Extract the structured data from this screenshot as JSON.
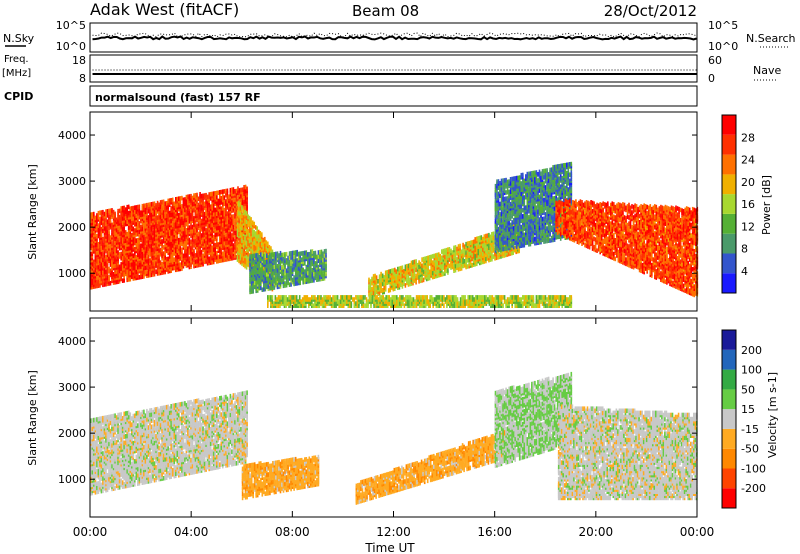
{
  "header": {
    "station": "Adak West (fitACF)",
    "beam": "Beam 08",
    "date": "28/Oct/2012"
  },
  "noise_panel": {
    "left_label": "N.Sky",
    "left_ticks": [
      "10^5",
      "10^0"
    ],
    "right_label": "N.Search",
    "right_ticks": [
      "10^5",
      "10^0"
    ]
  },
  "freq_panel": {
    "left_label_line1": "Freq.",
    "left_label_line2": "[MHz]",
    "left_ticks": [
      "18",
      "8"
    ],
    "right_label": "Nave",
    "right_ticks": [
      "60",
      "0"
    ]
  },
  "cpid_panel": {
    "label": "CPID",
    "text": "normalsound (fast) 157 RF"
  },
  "time_axis": {
    "label": "Time UT",
    "ticks": [
      "00:00",
      "04:00",
      "08:00",
      "12:00",
      "16:00",
      "20:00",
      "00:00"
    ]
  },
  "colors": {
    "power_scale": [
      "#1a1aff",
      "#3355cc",
      "#4a9a6a",
      "#55b035",
      "#a8d830",
      "#f0b000",
      "#ff7000",
      "#ff3000",
      "#ff0000"
    ],
    "velocity_scale": [
      "#ff0000",
      "#ff4400",
      "#ff8800",
      "#ffaa22",
      "#c8c8c8",
      "#66cc44",
      "#33aa44",
      "#2266bb",
      "#1a1a99"
    ]
  },
  "chart_data": [
    {
      "type": "heatmap",
      "name": "power",
      "xlabel": "Time UT",
      "ylabel": "Slant Range [km]",
      "xlim": [
        0,
        24
      ],
      "ylim": [
        180,
        4500
      ],
      "y_ticks": [
        "1000",
        "2000",
        "3000",
        "4000"
      ],
      "colorbar_label": "Power [dB]",
      "colorbar_ticks": [
        "4",
        "8",
        "12",
        "16",
        "20",
        "24",
        "28"
      ],
      "colorbar_range": [
        0,
        32
      ],
      "regions": [
        {
          "t0": 0.0,
          "t1": 6.2,
          "r_lo0": 700,
          "r_lo1": 1400,
          "r_hi0": 2300,
          "r_hi1": 2900,
          "value": 27
        },
        {
          "t0": 5.8,
          "t1": 7.2,
          "r_lo0": 1300,
          "r_lo1": 650,
          "r_hi0": 2600,
          "r_hi1": 1500,
          "value": 20
        },
        {
          "t0": 6.3,
          "t1": 9.3,
          "r_lo0": 600,
          "r_lo1": 900,
          "r_hi0": 1400,
          "r_hi1": 1500,
          "value": 10
        },
        {
          "t0": 11.0,
          "t1": 17.0,
          "r_lo0": 500,
          "r_lo1": 1500,
          "r_hi0": 900,
          "r_hi1": 2100,
          "value": 18
        },
        {
          "t0": 16.0,
          "t1": 19.0,
          "r_lo0": 1500,
          "r_lo1": 1800,
          "r_hi0": 3000,
          "r_hi1": 3400,
          "value": 8
        },
        {
          "t0": 18.4,
          "t1": 24.0,
          "r_lo0": 1900,
          "r_lo1": 500,
          "r_hi0": 2600,
          "r_hi1": 2400,
          "value": 26
        },
        {
          "t0": 7.0,
          "t1": 19.0,
          "r_lo0": 300,
          "r_lo1": 300,
          "r_hi0": 500,
          "r_hi1": 500,
          "value": 16
        }
      ]
    },
    {
      "type": "heatmap",
      "name": "velocity",
      "xlabel": "Time UT",
      "ylabel": "Slant Range [km]",
      "xlim": [
        0,
        24
      ],
      "ylim": [
        180,
        4500
      ],
      "y_ticks": [
        "1000",
        "2000",
        "3000",
        "4000"
      ],
      "colorbar_label": "Velocity [m s-1]",
      "colorbar_ticks": [
        "-200",
        "-100",
        "-50",
        "-15",
        "15",
        "50",
        "100",
        "200"
      ],
      "colorbar_range": [
        -250,
        250
      ],
      "regions": [
        {
          "t0": 0.0,
          "t1": 6.2,
          "r_lo0": 700,
          "r_lo1": 1400,
          "r_hi0": 2300,
          "r_hi1": 2900,
          "value": 0
        },
        {
          "t0": 6.0,
          "t1": 9.0,
          "r_lo0": 600,
          "r_lo1": 900,
          "r_hi0": 1300,
          "r_hi1": 1500,
          "value": -60
        },
        {
          "t0": 10.5,
          "t1": 16.5,
          "r_lo0": 500,
          "r_lo1": 1500,
          "r_hi0": 900,
          "r_hi1": 2100,
          "value": -60
        },
        {
          "t0": 16.0,
          "t1": 19.0,
          "r_lo0": 1300,
          "r_lo1": 1800,
          "r_hi0": 2900,
          "r_hi1": 3300,
          "value": 30
        },
        {
          "t0": 18.5,
          "t1": 24.0,
          "r_lo0": 600,
          "r_lo1": 600,
          "r_hi0": 2600,
          "r_hi1": 2400,
          "value": 0
        }
      ]
    }
  ]
}
